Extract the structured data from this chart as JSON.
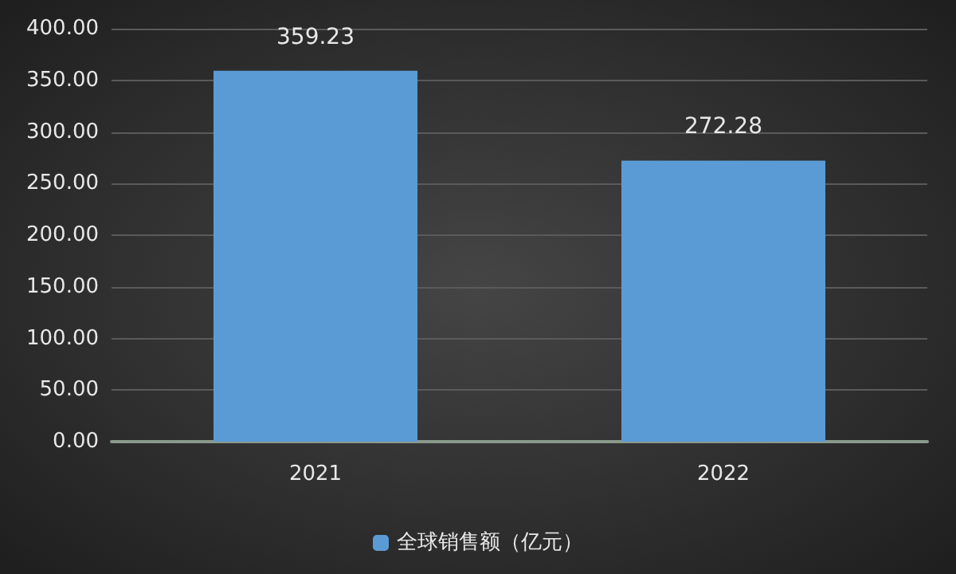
{
  "chart_data": {
    "type": "bar",
    "categories": [
      "2021",
      "2022"
    ],
    "series": [
      {
        "name": "全球销售额（亿元）",
        "color": "#5b9bd5",
        "values": [
          359.23,
          272.28
        ]
      }
    ],
    "ylim": [
      0,
      400
    ],
    "yticks": [
      {
        "value": 0,
        "label": "0.00"
      },
      {
        "value": 50,
        "label": "50.00"
      },
      {
        "value": 100,
        "label": "100.00"
      },
      {
        "value": 150,
        "label": "150.00"
      },
      {
        "value": 200,
        "label": "200.00"
      },
      {
        "value": 250,
        "label": "250.00"
      },
      {
        "value": 300,
        "label": "300.00"
      },
      {
        "value": 350,
        "label": "350.00"
      },
      {
        "value": 400,
        "label": "400.00"
      }
    ],
    "grid": "y",
    "legend": "bottom",
    "data_labels": true
  }
}
